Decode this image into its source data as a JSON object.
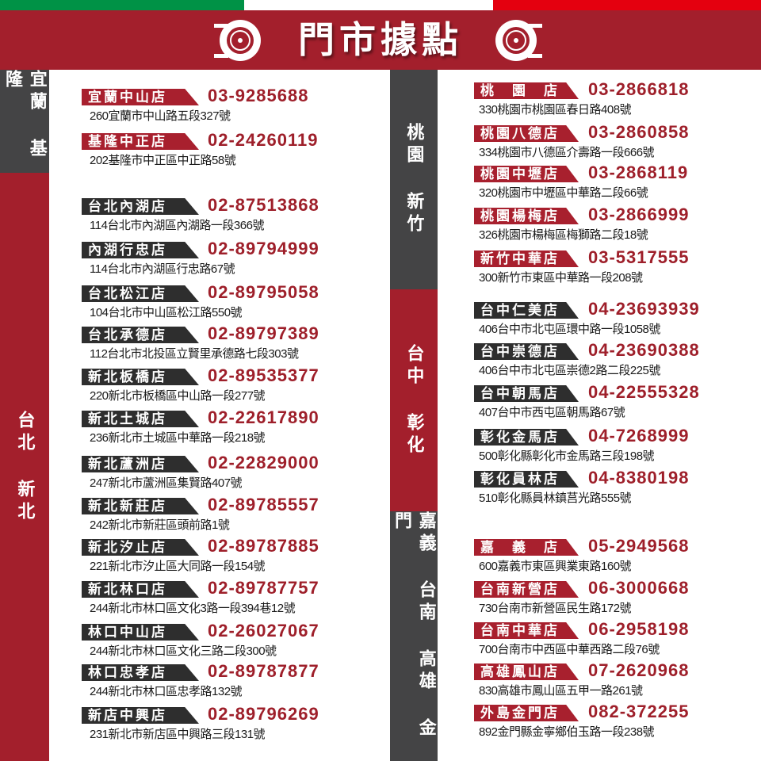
{
  "header": {
    "title": "門市據點",
    "icon": "tire-icon"
  },
  "colors": {
    "brand_red": "#a31f2c",
    "dark_gray": "#444445",
    "phone_red": "#9e1f2a",
    "flag_green": "#009246",
    "flag_red": "#e4000f"
  },
  "regions": [
    {
      "name": "宜蘭 基隆",
      "color": "gray"
    },
    {
      "name": "台北 新北",
      "color": "red"
    },
    {
      "name": "桃園 新竹",
      "color": "gray"
    },
    {
      "name": "台中 彰化",
      "color": "red"
    },
    {
      "name": "嘉義 台南 高雄 金門",
      "color": "gray"
    }
  ],
  "stores_left": [
    {
      "name": "宜蘭中山店",
      "phone": "03-9285688",
      "address": "260宜蘭市中山路五段327號",
      "style": "r"
    },
    {
      "name": "基隆中正店",
      "phone": "02-24260119",
      "address": "202基隆市中正區中正路58號",
      "style": "r"
    },
    {
      "name": "台北內湖店",
      "phone": "02-87513868",
      "address": "114台北市內湖區內湖路一段366號",
      "style": "d"
    },
    {
      "name": "內湖行忠店",
      "phone": "02-89794999",
      "address": "114台北市內湖區行忠路67號",
      "style": "d"
    },
    {
      "name": "台北松江店",
      "phone": "02-89795058",
      "address": "104台北市中山區松江路550號",
      "style": "d"
    },
    {
      "name": "台北承德店",
      "phone": "02-89797389",
      "address": "112台北市北投區立賢里承德路七段303號",
      "style": "d"
    },
    {
      "name": "新北板橋店",
      "phone": "02-89535377",
      "address": "220新北市板橋區中山路一段277號",
      "style": "d"
    },
    {
      "name": "新北土城店",
      "phone": "02-22617890",
      "address": "236新北市土城區中華路一段218號",
      "style": "d"
    },
    {
      "name": "新北蘆洲店",
      "phone": "02-22829000",
      "address": "247新北市蘆洲區集賢路407號",
      "style": "d"
    },
    {
      "name": "新北新莊店",
      "phone": "02-89785557",
      "address": "242新北市新莊區頭前路1號",
      "style": "d"
    },
    {
      "name": "新北汐止店",
      "phone": "02-89787885",
      "address": "221新北市汐止區大同路一段154號",
      "style": "d"
    },
    {
      "name": "新北林口店",
      "phone": "02-89787757",
      "address": "244新北市林口區文化3路一段394巷12號",
      "style": "d"
    },
    {
      "name": "林口中山店",
      "phone": "02-26027067",
      "address": "244新北市林口區文化三路二段300號",
      "style": "d"
    },
    {
      "name": "林口忠孝店",
      "phone": "02-89787877",
      "address": "244新北市林口區忠孝路132號",
      "style": "d"
    },
    {
      "name": "新店中興店",
      "phone": "02-89796269",
      "address": "231新北市新店區中興路三段131號",
      "style": "d"
    }
  ],
  "stores_right": [
    {
      "name": "桃　園　店",
      "phone": "03-2866818",
      "address": "330桃園市桃園區春日路408號",
      "style": "r"
    },
    {
      "name": "桃園八德店",
      "phone": "03-2860858",
      "address": "334桃園市八德區介壽路一段666號",
      "style": "r"
    },
    {
      "name": "桃園中壢店",
      "phone": "03-2868119",
      "address": "320桃園市中壢區中華路二段66號",
      "style": "r"
    },
    {
      "name": "桃園楊梅店",
      "phone": "03-2866999",
      "address": "326桃園市楊梅區梅獅路二段18號",
      "style": "r"
    },
    {
      "name": "新竹中華店",
      "phone": "03-5317555",
      "address": "300新竹市東區中華路一段208號",
      "style": "r"
    },
    {
      "name": "台中仁美店",
      "phone": "04-23693939",
      "address": "406台中市北屯區環中路一段1058號",
      "style": "d"
    },
    {
      "name": "台中崇德店",
      "phone": "04-23690388",
      "address": "406台中市北屯區崇德2路二段225號",
      "style": "d"
    },
    {
      "name": "台中朝馬店",
      "phone": "04-22555328",
      "address": "407台中市西屯區朝馬路67號",
      "style": "d"
    },
    {
      "name": "彰化金馬店",
      "phone": "04-7268999",
      "address": "500彰化縣彰化市金馬路三段198號",
      "style": "d"
    },
    {
      "name": "彰化員林店",
      "phone": "04-8380198",
      "address": "510彰化縣員林鎮莒光路555號",
      "style": "d"
    },
    {
      "name": "嘉　義　店",
      "phone": "05-2949568",
      "address": "600嘉義市東區興業東路160號",
      "style": "r"
    },
    {
      "name": "台南新營店",
      "phone": "06-3000668",
      "address": "730台南市新營區民生路172號",
      "style": "r"
    },
    {
      "name": "台南中華店",
      "phone": "06-2958198",
      "address": "700台南市中西區中華西路二段76號",
      "style": "r"
    },
    {
      "name": "高雄鳳山店",
      "phone": "07-2620968",
      "address": "830高雄市鳳山區五甲一路261號",
      "style": "r"
    },
    {
      "name": "外島金門店",
      "phone": "082-372255",
      "address": "892金門縣金寧鄉伯玉路一段238號",
      "style": "r"
    }
  ]
}
